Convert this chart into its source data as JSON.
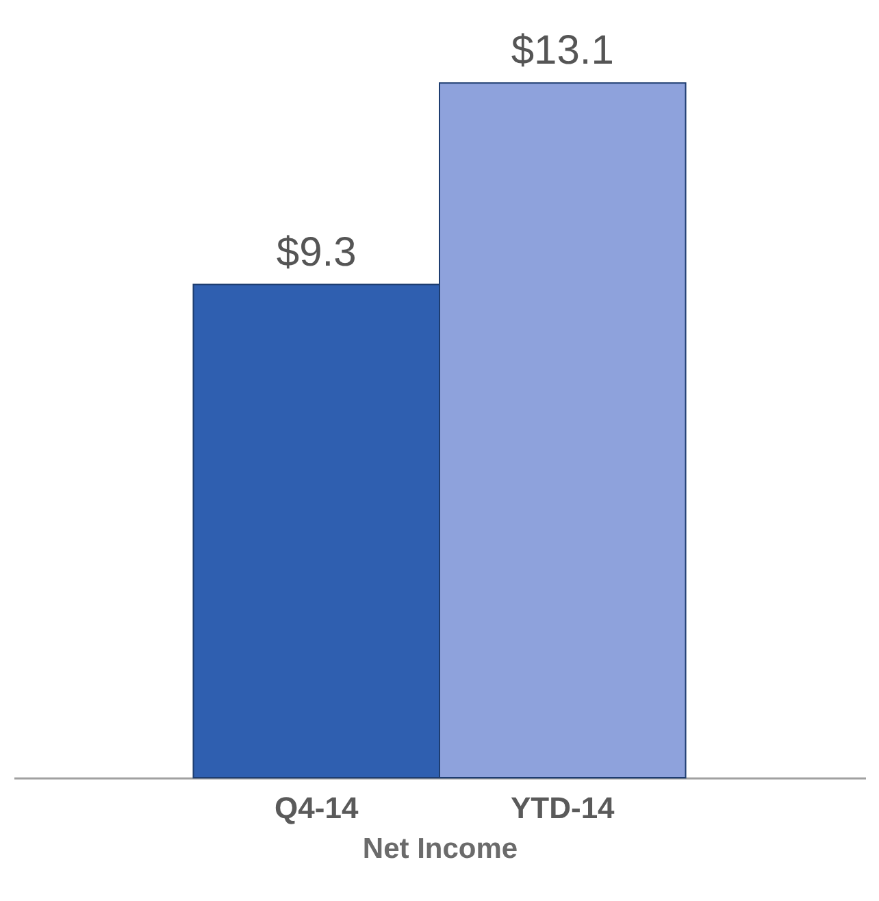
{
  "chart_data": {
    "type": "bar",
    "xlabel": "Net Income",
    "categories": [
      "Q4-14",
      "YTD-14"
    ],
    "values": [
      9.3,
      13.1
    ],
    "colors": [
      "#2f5fb0",
      "#8ea2dc"
    ],
    "value_labels": [
      "$9.3",
      "$13.1"
    ],
    "tick_labels": "x"
  }
}
